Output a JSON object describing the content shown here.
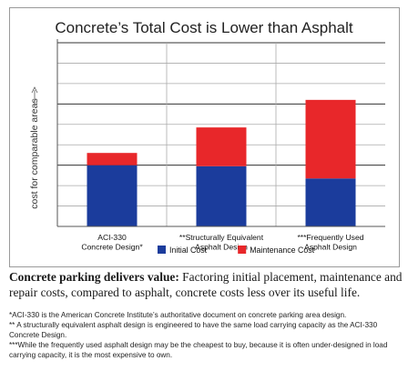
{
  "chart_data": {
    "type": "bar",
    "stacked": true,
    "title": "Concrete’s Total Cost is Lower than Asphalt",
    "ylabel": "cost for comparable areas",
    "ylim": [
      0,
      9
    ],
    "y_ticks_labeled": false,
    "grid": true,
    "legend_position": "bottom",
    "categories": [
      [
        "ACI-330",
        "Concrete Design*"
      ],
      [
        "**Structurally Equivalent",
        "Asphalt Design"
      ],
      [
        "***Frequently Used",
        "Asphalt Design"
      ]
    ],
    "series": [
      {
        "name": "Initial Cost",
        "color": "#1b3c9c",
        "values": [
          3.0,
          2.95,
          2.35
        ]
      },
      {
        "name": "Maintenance Cost",
        "color": "#e8272a",
        "values": [
          0.6,
          1.9,
          3.85
        ]
      }
    ]
  },
  "caption": {
    "lead": "Concrete parking delivers value:",
    "body": " Factoring initial placement, maintenance and repair costs, compared to asphalt, concrete costs less over its useful life."
  },
  "footnotes": [
    "*ACI-330 is the American Concrete Institute’s authoritative document on concrete parking area design.",
    "** A structurally equivalent asphalt design is engineered to have the same load carrying capacity as the ACI-330 Concrete Design.",
    "***While the frequently used asphalt design may be the cheapest to buy, because it is often under-designed in load carrying capacity, it is the most expensive to own."
  ]
}
